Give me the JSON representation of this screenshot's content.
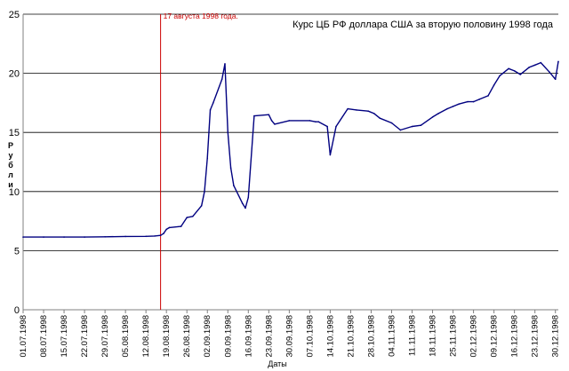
{
  "chart_data": {
    "type": "line",
    "title": "Курс ЦБ РФ доллара США за вторую половину 1998 года",
    "xlabel": "Даты",
    "ylabel": "Рубли",
    "ylim": [
      0,
      25
    ],
    "y_ticks": [
      "0",
      "5",
      "10",
      "15",
      "20",
      "25"
    ],
    "grid": true,
    "legend": "none",
    "colors": {
      "line": "#000080",
      "marker": "#cc0000",
      "grid": "#000000",
      "axis": "#808080"
    },
    "annotation": {
      "text": "17 августа 1998 года.",
      "x": "17.08.1998"
    },
    "x_tick_labels": [
      "01.07.1998",
      "08.07.1998",
      "15.07.1998",
      "22.07.1998",
      "29.07.1998",
      "05.08.1998",
      "12.08.1998",
      "19.08.1998",
      "26.08.1998",
      "02.09.1998",
      "09.09.1998",
      "16.09.1998",
      "23.09.1998",
      "30.09.1998",
      "07.10.1998",
      "14.10.1998",
      "21.10.1998",
      "28.10.1998",
      "04.11.1998",
      "11.11.1998",
      "18.11.1998",
      "25.11.1998",
      "02.12.1998",
      "09.12.1998",
      "16.12.1998",
      "23.12.1998",
      "30.12.1998"
    ],
    "series": [
      {
        "x": [
          "01.07.1998",
          "08.07.1998",
          "15.07.1998",
          "22.07.1998",
          "29.07.1998",
          "05.08.1998",
          "12.08.1998",
          "15.08.1998",
          "17.08.1998",
          "18.08.1998",
          "19.08.1998",
          "20.08.1998",
          "24.08.1998",
          "26.08.1998",
          "28.08.1998",
          "31.08.1998",
          "01.09.1998",
          "02.09.1998",
          "03.09.1998",
          "04.09.1998",
          "07.09.1998",
          "08.09.1998",
          "09.09.1998",
          "10.09.1998",
          "11.09.1998",
          "14.09.1998",
          "15.09.1998",
          "16.09.1998",
          "18.09.1998",
          "23.09.1998",
          "24.09.1998",
          "25.09.1998",
          "30.09.1998",
          "07.10.1998",
          "09.10.1998",
          "10.10.1998",
          "13.10.1998",
          "14.10.1998",
          "16.10.1998",
          "20.10.1998",
          "23.10.1998",
          "27.10.1998",
          "29.10.1998",
          "31.10.1998",
          "04.11.1998",
          "07.11.1998",
          "11.11.1998",
          "14.11.1998",
          "18.11.1998",
          "20.11.1998",
          "23.11.1998",
          "25.11.1998",
          "27.11.1998",
          "30.11.1998",
          "02.12.1998",
          "04.12.1998",
          "07.12.1998",
          "09.12.1998",
          "11.12.1998",
          "14.12.1998",
          "16.12.1998",
          "18.12.1998",
          "21.12.1998",
          "23.12.1998",
          "25.12.1998",
          "28.12.1998",
          "30.12.1998",
          "31.12.1998"
        ],
        "values": [
          6.15,
          6.15,
          6.15,
          6.15,
          6.17,
          6.2,
          6.21,
          6.24,
          6.29,
          6.44,
          6.8,
          6.95,
          7.05,
          7.8,
          7.9,
          8.8,
          10.0,
          12.8,
          16.9,
          17.5,
          19.5,
          20.8,
          15.0,
          12.0,
          10.5,
          9.0,
          8.6,
          9.5,
          16.4,
          16.5,
          16.0,
          15.7,
          16.0,
          16.0,
          15.9,
          15.9,
          15.5,
          13.1,
          15.5,
          17.0,
          16.9,
          16.8,
          16.6,
          16.2,
          15.8,
          15.2,
          15.5,
          15.6,
          16.3,
          16.6,
          17.0,
          17.2,
          17.4,
          17.6,
          17.6,
          17.8,
          18.1,
          19.0,
          19.8,
          20.4,
          20.2,
          19.9,
          20.5,
          20.7,
          20.9,
          20.1,
          19.5,
          21.0
        ]
      }
    ]
  }
}
